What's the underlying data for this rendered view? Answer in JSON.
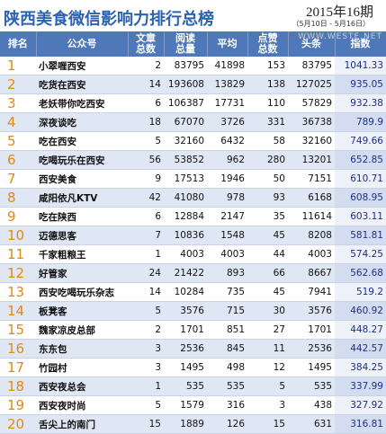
{
  "header": {
    "title": "陕西美食微信影响力排行总榜",
    "issue": "2015年16期",
    "period": "（5月10日 - 5月16日）",
    "watermark": "WWW.WESTE.NET"
  },
  "table": {
    "columns": [
      "排名",
      "公众号",
      "文章总数",
      "阅读总量",
      "平均",
      "点赞总数",
      "头条",
      "指数"
    ],
    "rows": [
      [
        1,
        "小翠喱西安",
        2,
        83795,
        41898,
        153,
        83795,
        1041.33
      ],
      [
        2,
        "吃货在西安",
        14,
        193608,
        13829,
        138,
        127025,
        935.05
      ],
      [
        3,
        "老妖带你吃西安",
        6,
        106387,
        17731,
        110,
        57829,
        932.38
      ],
      [
        4,
        "深夜谈吃",
        18,
        67070,
        3726,
        331,
        36738,
        789.9
      ],
      [
        5,
        "吃在西安",
        5,
        32160,
        6432,
        58,
        32160,
        749.66
      ],
      [
        6,
        "吃喝玩乐在西安",
        56,
        53852,
        962,
        280,
        13201,
        652.85
      ],
      [
        7,
        "西安美食",
        9,
        17513,
        1946,
        50,
        7151,
        610.71
      ],
      [
        8,
        "咸阳依凡KTV",
        42,
        41080,
        978,
        93,
        6168,
        608.95
      ],
      [
        9,
        "吃在陕西",
        6,
        12884,
        2147,
        35,
        11614,
        603.11
      ],
      [
        10,
        "迈德思客",
        7,
        10836,
        1548,
        45,
        8208,
        581.81
      ],
      [
        11,
        "千家粗粮王",
        1,
        4003,
        4003,
        44,
        4003,
        574.25
      ],
      [
        12,
        "好管家",
        24,
        21422,
        893,
        66,
        8667,
        562.68
      ],
      [
        13,
        "西安吃喝玩乐杂志",
        14,
        10284,
        735,
        45,
        7941,
        519.2
      ],
      [
        14,
        "板凳客",
        5,
        3576,
        715,
        30,
        3576,
        460.92
      ],
      [
        15,
        "魏家凉皮总部",
        2,
        1701,
        851,
        27,
        1701,
        448.27
      ],
      [
        16,
        "东东包",
        3,
        2536,
        845,
        11,
        2536,
        442.57
      ],
      [
        17,
        "竹园村",
        3,
        1495,
        498,
        12,
        1495,
        384.25
      ],
      [
        18,
        "西安夜总会",
        1,
        535,
        535,
        5,
        535,
        337.99
      ],
      [
        19,
        "西安夜时尚",
        5,
        1579,
        316,
        3,
        438,
        327.92
      ],
      [
        20,
        "舌尖上的南门",
        15,
        1889,
        126,
        15,
        631,
        316.81
      ]
    ]
  }
}
